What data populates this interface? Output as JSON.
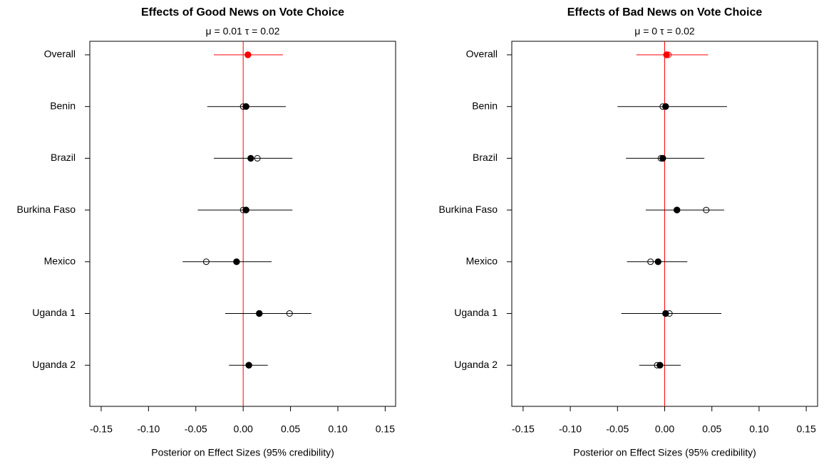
{
  "chart_data": [
    {
      "type": "forest",
      "title": "Effects of Good News on Vote Choice",
      "subtitle": "μ = 0.01  τ = 0.02",
      "x_label": "Posterior on Effect Sizes (95% credibility)",
      "categories": [
        "Overall",
        "Benin",
        "Brazil",
        "Burkina Faso",
        "Mexico",
        "Uganda 1",
        "Uganda 2"
      ],
      "values": [
        0.005,
        0.003,
        0.008,
        0.003,
        -0.007,
        0.017,
        0.006
      ],
      "raw_values": [
        0.005,
        0.0,
        0.015,
        0.0,
        -0.039,
        0.049,
        0.006
      ],
      "lower": [
        -0.031,
        -0.038,
        -0.031,
        -0.048,
        -0.064,
        -0.019,
        -0.015
      ],
      "upper": [
        0.042,
        0.045,
        0.052,
        0.052,
        0.03,
        0.072,
        0.026
      ],
      "color": "#000000",
      "highlight_index": 0,
      "highlight_color": "#ff0000",
      "ref_line": 0,
      "ref_color": "#ff0000",
      "xlim": [
        -0.162,
        0.161
      ],
      "xticks": [
        -0.15,
        {
          "value": -0.1,
          "label": "-0.10"
        },
        -0.05,
        {
          "value": 0,
          "label": "0.00"
        },
        0.05,
        {
          "value": 0.1,
          "label": "0.10"
        },
        0.15
      ]
    },
    {
      "type": "forest",
      "title": "Effects of Bad News on Vote Choice",
      "subtitle": "μ = 0  τ = 0.02",
      "x_label": "Posterior on Effect Sizes (95% credibility)",
      "categories": [
        "Overall",
        "Benin",
        "Brazil",
        "Burkina Faso",
        "Mexico",
        "Uganda 1",
        "Uganda 2"
      ],
      "values": [
        0.002,
        0.001,
        -0.002,
        0.013,
        -0.007,
        0.001,
        -0.005
      ],
      "raw_values": [
        0.004,
        -0.002,
        -0.004,
        0.044,
        -0.015,
        0.005,
        -0.008
      ],
      "lower": [
        -0.03,
        -0.05,
        -0.041,
        -0.02,
        -0.04,
        -0.046,
        -0.027
      ],
      "upper": [
        0.046,
        0.066,
        0.042,
        0.063,
        0.024,
        0.06,
        0.017
      ],
      "color": "#000000",
      "highlight_index": 0,
      "highlight_color": "#ff0000",
      "ref_line": 0,
      "ref_color": "#ff0000",
      "xlim": [
        -0.162,
        0.162
      ],
      "xticks": [
        -0.15,
        {
          "value": -0.1,
          "label": "-0.10"
        },
        -0.05,
        {
          "value": 0,
          "label": "0.00"
        },
        0.05,
        {
          "value": 0.1,
          "label": "0.10"
        },
        0.15
      ]
    }
  ]
}
